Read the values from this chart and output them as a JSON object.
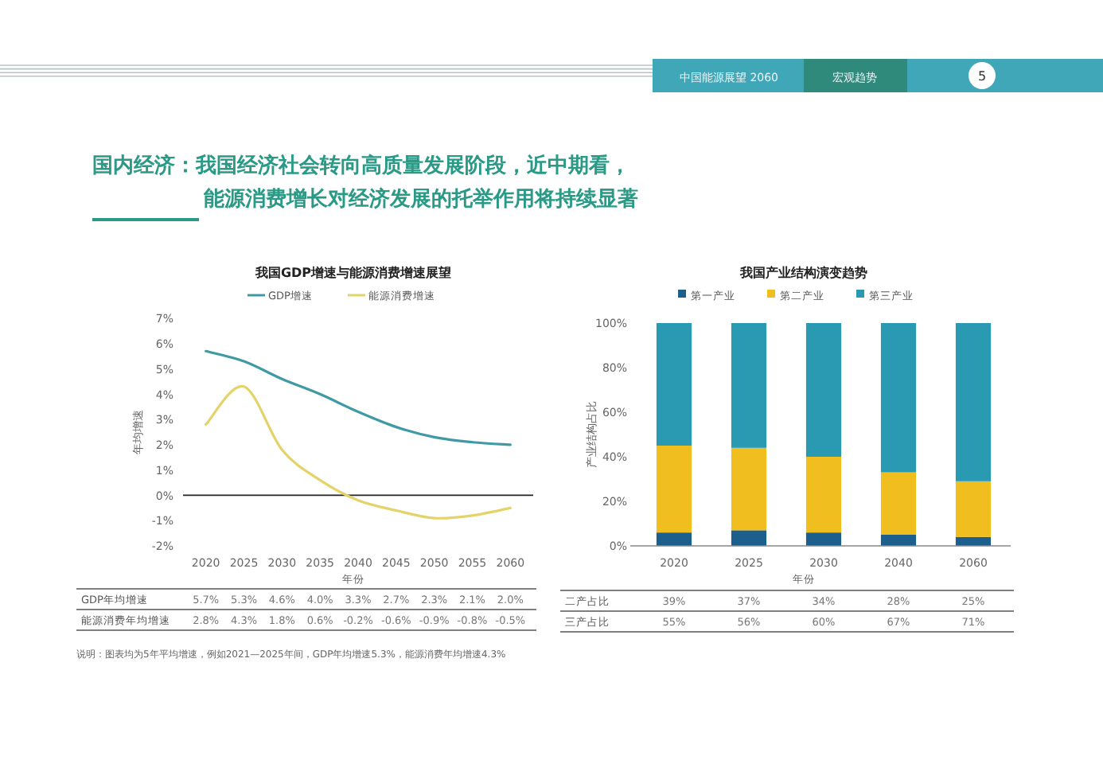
{
  "chart_data": [
    {
      "type": "other",
      "annotations": [
        "中国能源展望 2060",
        "宏观趋势",
        "5",
        "国内经济：我国经济社会转向高质量发展阶段，近中期看，",
        "能源消费增长对经济发展的托举作用将持续显著"
      ]
    },
    {
      "type": "line",
      "title": "我国GDP增速与能源消费增速展望",
      "xlabel": "年份",
      "ylabel": "年均增速",
      "x": [
        2020,
        2025,
        2030,
        2035,
        2040,
        2045,
        2050,
        2055,
        2060
      ],
      "series": [
        {
          "name": "GDP增速",
          "color": "#3f9aa6",
          "values": [
            5.7,
            5.3,
            4.6,
            4.0,
            3.3,
            2.7,
            2.3,
            2.1,
            2.0
          ]
        },
        {
          "name": "能源消费增速",
          "color": "#e3d36a",
          "values": [
            2.8,
            4.3,
            1.8,
            0.6,
            -0.2,
            -0.6,
            -0.9,
            -0.8,
            -0.5
          ]
        }
      ],
      "xlim": [
        2017,
        2063
      ],
      "ylim": [
        -2,
        7
      ],
      "xticks": [
        2020,
        2025,
        2030,
        2035,
        2040,
        2045,
        2050,
        2055,
        2060
      ],
      "yticks": [
        {
          "value": -2,
          "label": "-2%"
        },
        {
          "value": -1,
          "label": "-1%"
        },
        {
          "value": 0,
          "label": "0%"
        },
        {
          "value": 1,
          "label": "1%"
        },
        {
          "value": 2,
          "label": "2%"
        },
        {
          "value": 3,
          "label": "3%"
        },
        {
          "value": 4,
          "label": "4%"
        },
        {
          "value": 5,
          "label": "5%"
        },
        {
          "value": 6,
          "label": "6%"
        },
        {
          "value": 7,
          "label": "7%"
        }
      ],
      "ref_lines": [
        {
          "axis": "y",
          "value": 0,
          "color": "#222222"
        }
      ],
      "legend": "top",
      "marker": "none",
      "line_style": "solid",
      "annotations": [
        "GDP年均增速",
        "5.7%",
        "5.3%",
        "4.6%",
        "4.0%",
        "3.3%",
        "2.7%",
        "2.3%",
        "2.1%",
        "2.0%",
        "能源消费年均增速",
        "2.8%",
        "4.3%",
        "1.8%",
        "0.6%",
        "-0.2%",
        "-0.6%",
        "-0.9%",
        "-0.8%",
        "-0.5%",
        "说明：图表均为5年平均增速，例如2021—2025年间，GDP年均增速5.3%，能源消费年均增速4.3%"
      ]
    },
    {
      "type": "bar",
      "title": "我国产业结构演变趋势",
      "xlabel": "年份",
      "ylabel": "产业结构占比",
      "stacked": true,
      "categories": [
        "2020",
        "2025",
        "2030",
        "2040",
        "2060"
      ],
      "series": [
        {
          "name": "第一产业",
          "color": "#1d5f8c",
          "values": [
            6,
            7,
            6,
            5,
            4
          ]
        },
        {
          "name": "第二产业",
          "color": "#f0bf1f",
          "values": [
            39,
            37,
            34,
            28,
            25
          ],
          "value_labels": [
            "39%",
            "37%",
            "34%",
            "28%",
            "25%"
          ]
        },
        {
          "name": "第三产业",
          "color": "#2a9ab2",
          "values": [
            55,
            56,
            60,
            67,
            71
          ],
          "value_labels": [
            "55%",
            "56%",
            "60%",
            "67%",
            "71%"
          ]
        }
      ],
      "ylim": [
        0,
        100
      ],
      "yticks": [
        {
          "value": 0,
          "label": "0%"
        },
        {
          "value": 20,
          "label": "20%"
        },
        {
          "value": 40,
          "label": "40%"
        },
        {
          "value": 60,
          "label": "60%"
        },
        {
          "value": 80,
          "label": "80%"
        },
        {
          "value": 100,
          "label": "100%"
        }
      ],
      "legend": "top",
      "annotations": [
        "二产占比",
        "三产占比"
      ]
    }
  ]
}
